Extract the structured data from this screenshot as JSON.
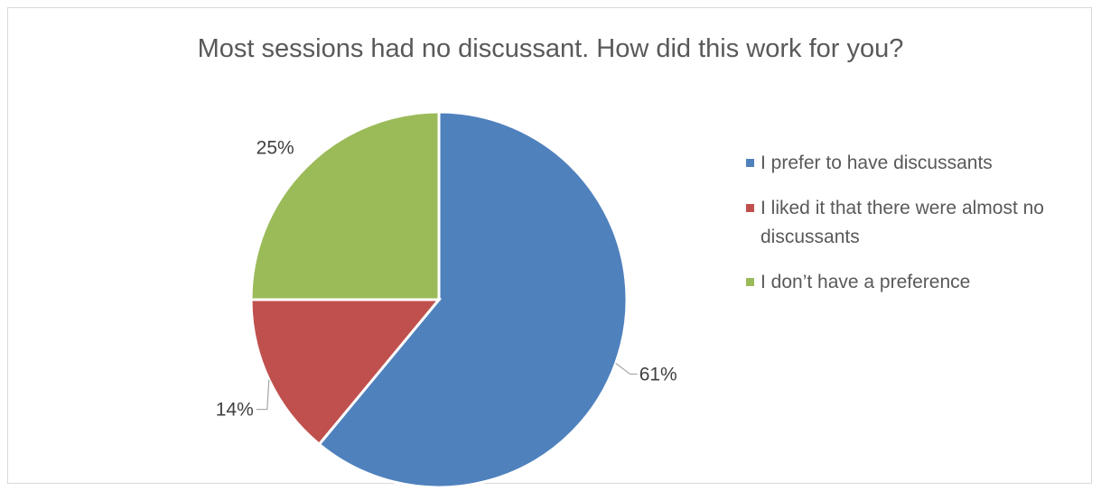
{
  "chart_data": {
    "type": "pie",
    "title": "Most sessions had no discussant. How did this work for you?",
    "categories": [
      "I prefer to have discussants",
      "I liked it that there were almost no discussants",
      "I don’t have a preference"
    ],
    "values": [
      61,
      14,
      25
    ],
    "labels": [
      "61%",
      "14%",
      "25%"
    ],
    "colors": [
      "#4f81bd",
      "#c0504d",
      "#9bbb59"
    ],
    "legend_position": "right",
    "start": "12 o'clock, clockwise"
  }
}
